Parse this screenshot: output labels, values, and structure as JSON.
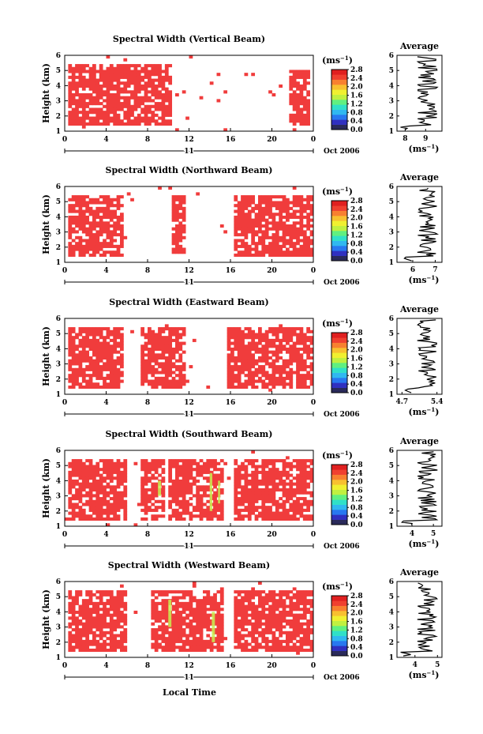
{
  "figure": {
    "ylabel": "Height (km)",
    "xlabel": "Local Time",
    "date_label": "Oct 2006",
    "day_label": "11",
    "colorbar_unit": "(ms",
    "colorbar_unit_exp": "−1",
    "colorbar_unit_close": ")",
    "avg_title": "Average"
  },
  "colors": {
    "main_fill": "#f03c3c",
    "scale": [
      "#2a2a5a",
      "#3030c0",
      "#2878f0",
      "#30b8f0",
      "#30e0c8",
      "#60f080",
      "#c0f040",
      "#f0f030",
      "#f8c030",
      "#f88030",
      "#f04030",
      "#e02020"
    ]
  },
  "chart_data": [
    {
      "type": "heatmap",
      "title": "Spectral Width (Vertical Beam)",
      "xlim": [
        0,
        24
      ],
      "ylim": [
        1,
        6
      ],
      "xticks": [
        "0",
        "4",
        "8",
        "12",
        "16",
        "20",
        "0"
      ],
      "yticks": [
        "1",
        "2",
        "3",
        "4",
        "5",
        "6"
      ],
      "colorbar_ticks": [
        "0.0",
        "0.4",
        "0.8",
        "1.2",
        "1.6",
        "2.0",
        "2.4",
        "2.8"
      ],
      "coverage": [
        [
          0.5,
          10.3,
          1.3,
          5.5
        ],
        [
          21.8,
          23.8,
          1.3,
          5.0
        ]
      ],
      "highlights": [],
      "avg": {
        "xticks": [
          "8",
          "9"
        ],
        "xlim": [
          7.6,
          9.8
        ],
        "ylim": [
          1,
          6
        ]
      }
    },
    {
      "type": "heatmap",
      "title": "Spectral Width (Northward Beam)",
      "xlim": [
        0,
        24
      ],
      "ylim": [
        1,
        6
      ],
      "xticks": [
        "0",
        "4",
        "8",
        "12",
        "16",
        "20",
        "0"
      ],
      "yticks": [
        "1",
        "2",
        "3",
        "4",
        "5",
        "6"
      ],
      "colorbar_ticks": [
        "0.0",
        "0.4",
        "0.8",
        "1.2",
        "1.6",
        "2.0",
        "2.4",
        "2.8"
      ],
      "coverage": [
        [
          0.3,
          5.5,
          1.3,
          5.5
        ],
        [
          10.2,
          11.8,
          1.5,
          5.5
        ],
        [
          16.3,
          24,
          1.3,
          5.5
        ]
      ],
      "highlights": [],
      "avg": {
        "xticks": [
          "6",
          "7"
        ],
        "xlim": [
          5.3,
          7.3
        ],
        "ylim": [
          1,
          6
        ]
      }
    },
    {
      "type": "heatmap",
      "title": "Spectral Width (Eastward Beam)",
      "xlim": [
        0,
        24
      ],
      "ylim": [
        1,
        6
      ],
      "xticks": [
        "0",
        "4",
        "8",
        "12",
        "16",
        "20",
        "0"
      ],
      "yticks": [
        "1",
        "2",
        "3",
        "4",
        "5",
        "6"
      ],
      "colorbar_ticks": [
        "0.0",
        "0.4",
        "0.8",
        "1.2",
        "1.6",
        "2.0",
        "2.4",
        "2.8"
      ],
      "coverage": [
        [
          0.2,
          5.5,
          1.3,
          5.5
        ],
        [
          7.3,
          11.5,
          1.3,
          5.5
        ],
        [
          15.8,
          24,
          1.3,
          5.5
        ]
      ],
      "highlights": [],
      "avg": {
        "xticks": [
          "4.7",
          "5.4"
        ],
        "xlim": [
          4.6,
          5.5
        ],
        "ylim": [
          1,
          6
        ]
      }
    },
    {
      "type": "heatmap",
      "title": "Spectral Width (Southward Beam)",
      "xlim": [
        0,
        24
      ],
      "ylim": [
        1,
        6
      ],
      "xticks": [
        "0",
        "4",
        "8",
        "12",
        "16",
        "20",
        "0"
      ],
      "yticks": [
        "1",
        "2",
        "3",
        "4",
        "5",
        "6"
      ],
      "colorbar_ticks": [
        "0.0",
        "0.4",
        "0.8",
        "1.2",
        "1.6",
        "2.0",
        "2.4",
        "2.8"
      ],
      "coverage": [
        [
          0.2,
          6.0,
          1.3,
          5.5
        ],
        [
          7.5,
          9.5,
          1.3,
          5.5
        ],
        [
          10.0,
          15.2,
          1.3,
          5.5
        ],
        [
          16.5,
          24,
          1.3,
          5.5
        ]
      ],
      "highlights": [
        [
          9.0,
          3.0,
          0.3,
          1.0
        ],
        [
          14.0,
          2.0,
          0.25,
          2.5
        ],
        [
          14.8,
          2.5,
          0.2,
          1.5
        ]
      ],
      "avg": {
        "xticks": [
          "4",
          "5"
        ],
        "xlim": [
          3.3,
          5.4
        ],
        "ylim": [
          1,
          6
        ]
      }
    },
    {
      "type": "heatmap",
      "title": "Spectral Width (Westward Beam)",
      "xlim": [
        0,
        24
      ],
      "ylim": [
        1,
        6
      ],
      "xticks": [
        "0",
        "4",
        "8",
        "12",
        "16",
        "20",
        "0"
      ],
      "yticks": [
        "1",
        "2",
        "3",
        "4",
        "5",
        "6"
      ],
      "colorbar_ticks": [
        "0.0",
        "0.4",
        "0.8",
        "1.2",
        "1.6",
        "2.0",
        "2.4",
        "2.8"
      ],
      "coverage": [
        [
          0.3,
          6.0,
          1.3,
          5.5
        ],
        [
          8.5,
          15.3,
          1.3,
          5.5
        ],
        [
          16.5,
          24,
          1.3,
          5.5
        ]
      ],
      "highlights": [
        [
          10.0,
          3.0,
          0.3,
          1.8
        ],
        [
          14.2,
          2.0,
          0.3,
          2.0
        ]
      ],
      "avg": {
        "xticks": [
          "4",
          "5"
        ],
        "xlim": [
          3.2,
          5.2
        ],
        "ylim": [
          1,
          6
        ]
      }
    }
  ]
}
